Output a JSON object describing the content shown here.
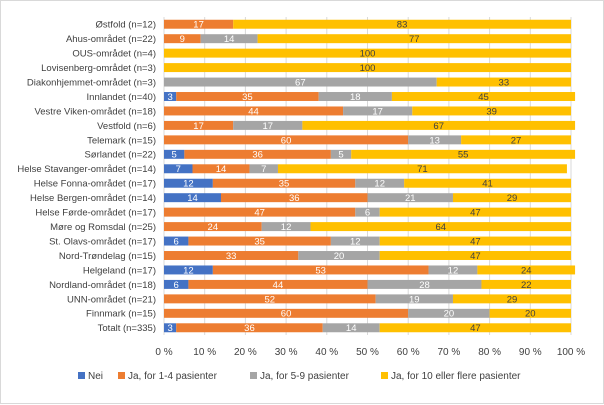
{
  "chart_data": {
    "type": "bar",
    "orientation": "horizontal",
    "stacked": true,
    "percent": true,
    "categories": [
      "Østfold (n=12)",
      "Ahus-området (n=22)",
      "OUS-området (n=4)",
      "Lovisenberg-området (n=3)",
      "Diakonhjemmet-området (n=3)",
      "Innlandet (n=40)",
      "Vestre Viken-området (n=18)",
      "Vestfold (n=6)",
      "Telemark (n=15)",
      "Sørlandet (n=22)",
      "Helse Stavanger-området (n=14)",
      "Helse Fonna-området (n=17)",
      "Helse Bergen-området (n=14)",
      "Helse Førde-området (n=17)",
      "Møre og Romsdal (n=25)",
      "St. Olavs-området (n=17)",
      "Nord-Trøndelag (n=15)",
      "Helgeland (n=17)",
      "Nordland-området (n=18)",
      "UNN-området (n=21)",
      "Finnmark (n=15)",
      "Totalt (n=335)"
    ],
    "series": [
      {
        "name": "Nei",
        "color": "#4472c4",
        "values": [
          0,
          0,
          0,
          0,
          0,
          3,
          0,
          0,
          0,
          5,
          7,
          12,
          14,
          0,
          0,
          6,
          0,
          12,
          6,
          0,
          0,
          3
        ]
      },
      {
        "name": "Ja, for 1-4 pasienter",
        "color": "#ed7d31",
        "values": [
          17,
          9,
          0,
          0,
          0,
          35,
          44,
          17,
          60,
          36,
          14,
          35,
          36,
          47,
          24,
          35,
          33,
          53,
          44,
          52,
          60,
          36
        ]
      },
      {
        "name": "Ja, for 5-9 pasienter",
        "color": "#a5a5a5",
        "values": [
          0,
          14,
          0,
          0,
          67,
          18,
          17,
          17,
          13,
          5,
          7,
          12,
          21,
          6,
          12,
          12,
          20,
          12,
          28,
          19,
          20,
          14
        ]
      },
      {
        "name": "Ja, for 10 eller flere pasienter",
        "color": "#ffc000",
        "values": [
          83,
          77,
          100,
          100,
          33,
          45,
          39,
          67,
          27,
          55,
          71,
          41,
          29,
          47,
          64,
          47,
          47,
          24,
          22,
          29,
          20,
          47
        ]
      }
    ],
    "xlim": [
      0,
      100
    ],
    "xticks": [
      "0 %",
      "10 %",
      "20 %",
      "30 %",
      "40 %",
      "50 %",
      "60 %",
      "70 %",
      "80 %",
      "90 %",
      "100 %"
    ],
    "grid": true,
    "legend_position": "bottom",
    "title": "",
    "xlabel": "",
    "ylabel": ""
  }
}
